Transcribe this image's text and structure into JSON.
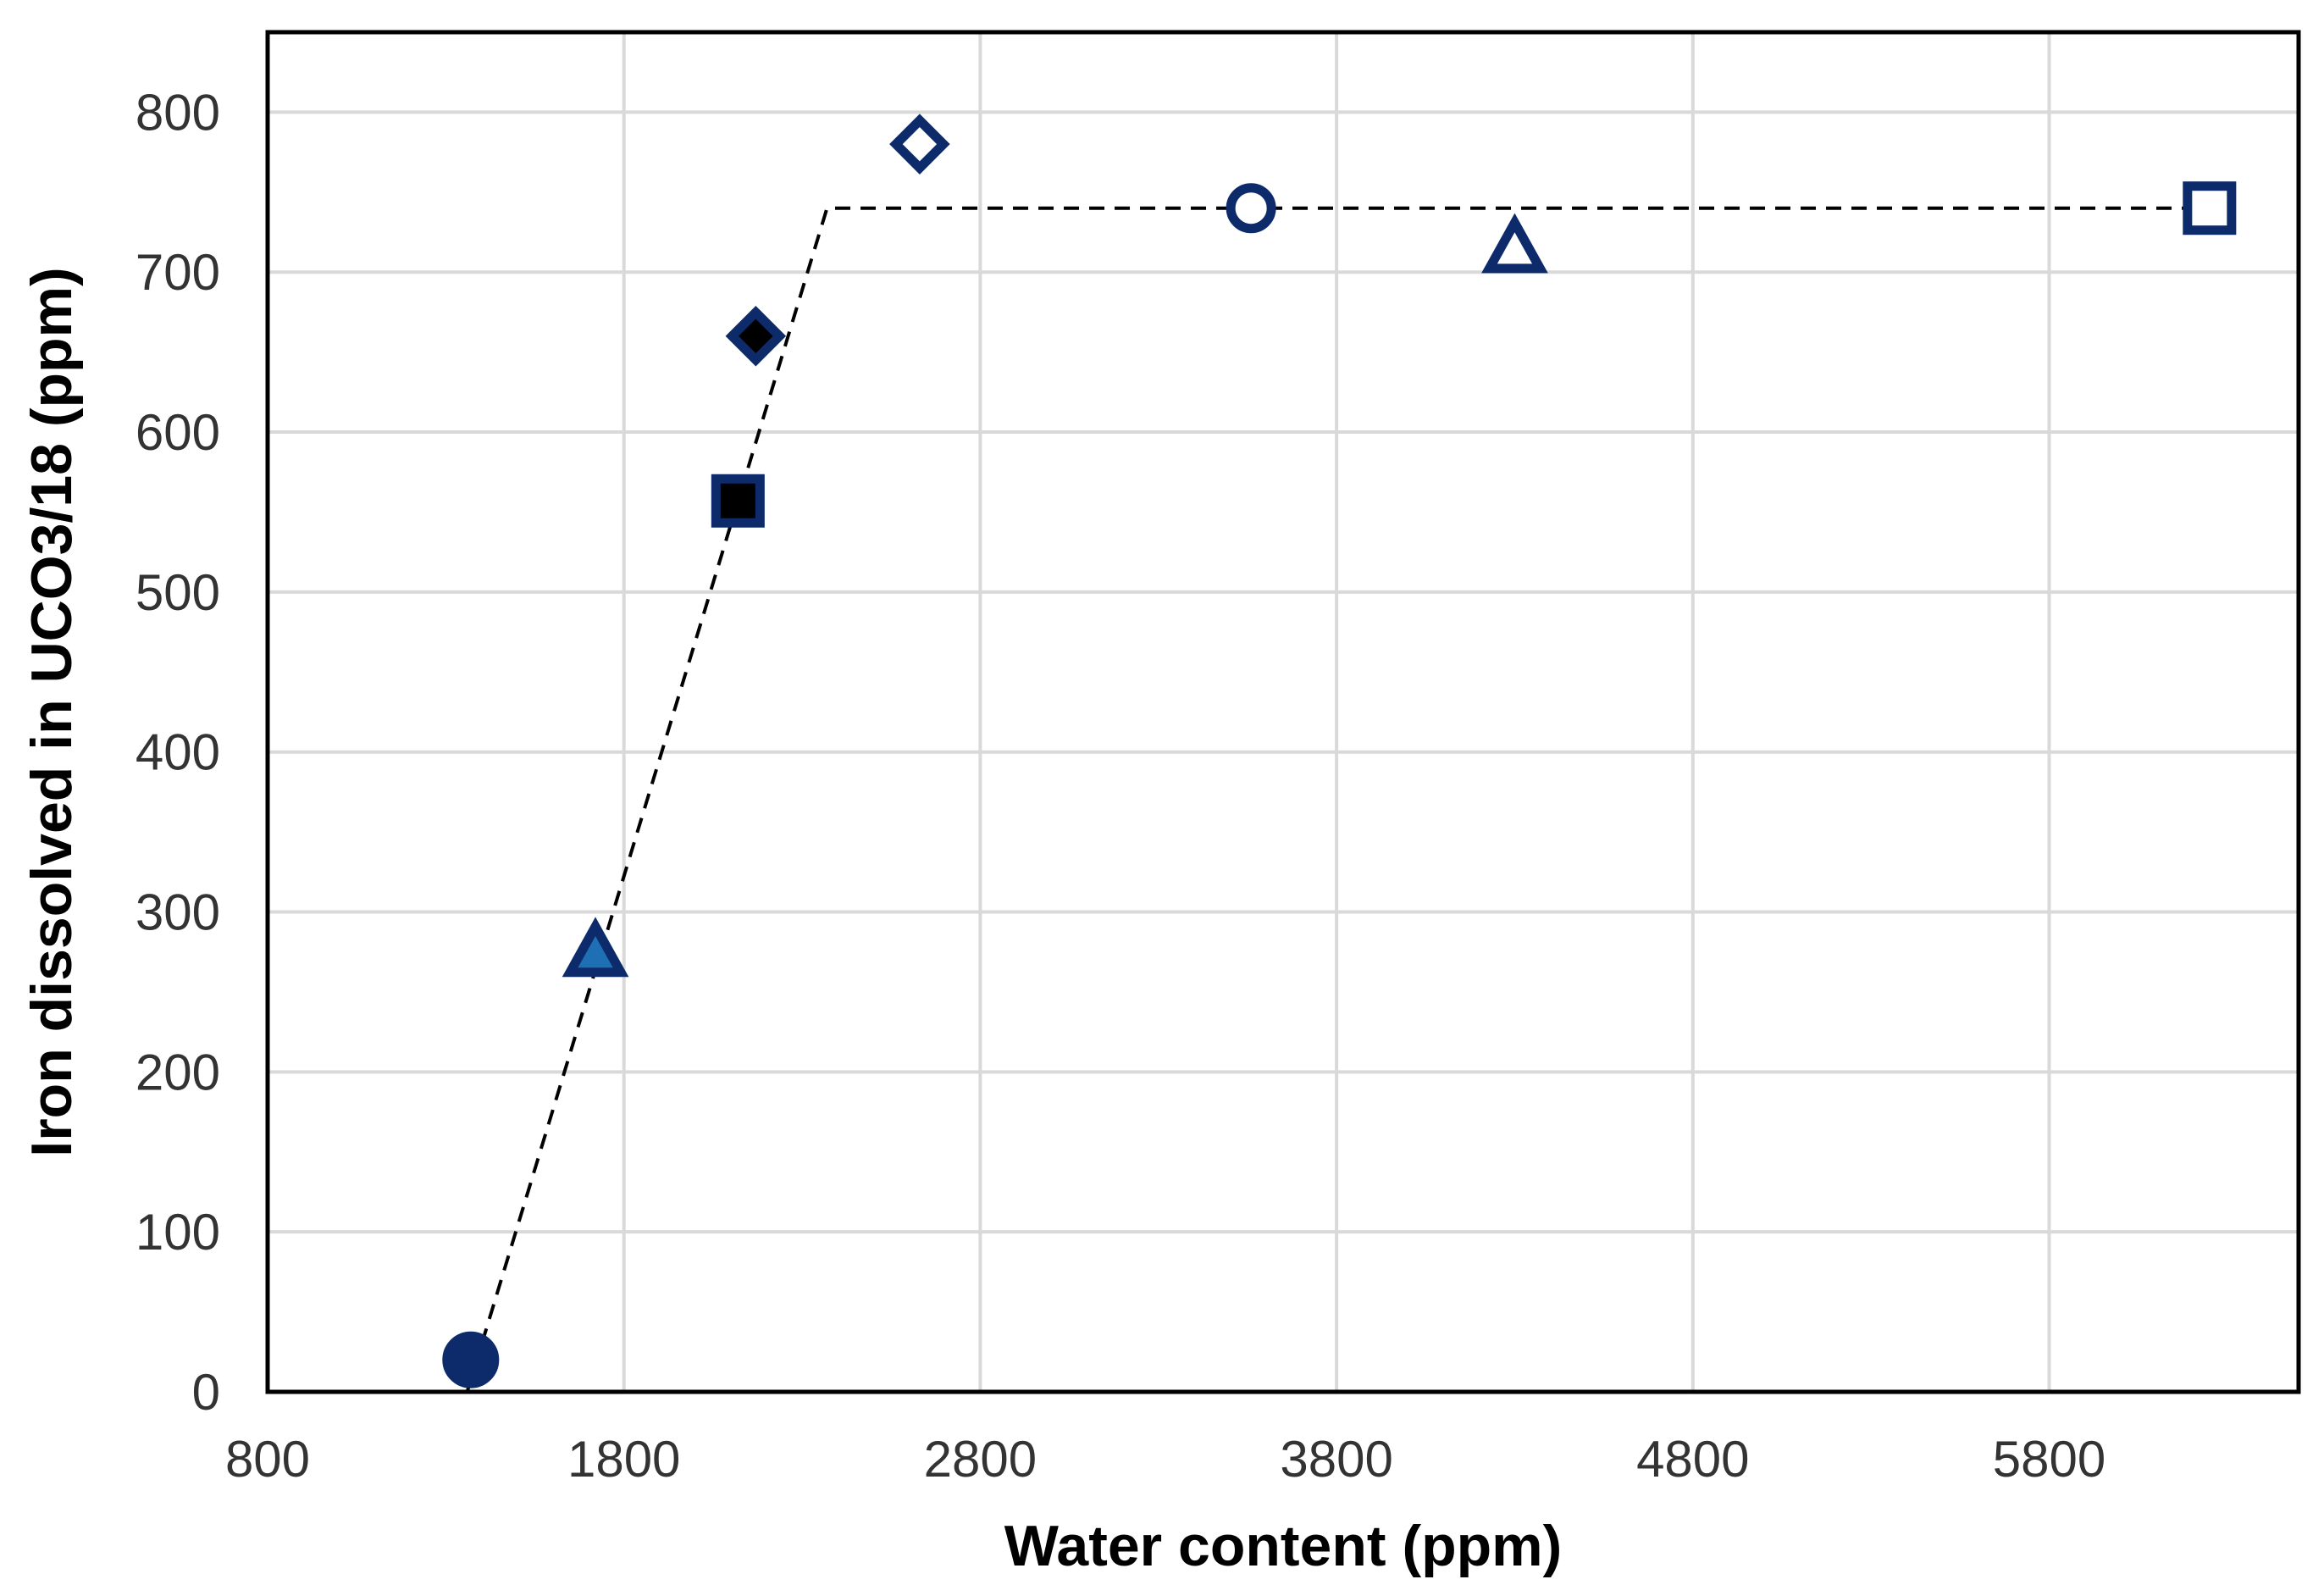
{
  "chart_data": {
    "type": "scatter",
    "title": "",
    "xlabel": "Water content (ppm)",
    "ylabel": "Iron dissolved in UCO3/18 (ppm)",
    "xlim": [
      800,
      6500
    ],
    "ylim": [
      0,
      850
    ],
    "x_ticks": [
      800,
      1800,
      2800,
      3800,
      4800,
      5800
    ],
    "y_ticks": [
      0,
      100,
      200,
      300,
      400,
      500,
      600,
      700,
      800
    ],
    "grid": true,
    "legend": "none",
    "points": [
      {
        "x": 1370,
        "y": 20,
        "marker": "circle",
        "fill": "#0d2b6b",
        "stroke": "#0d2b6b"
      },
      {
        "x": 1720,
        "y": 275,
        "marker": "triangle",
        "fill": "#1f6fb5",
        "stroke": "#0d2b6b"
      },
      {
        "x": 2120,
        "y": 557,
        "marker": "square",
        "fill": "#000000",
        "stroke": "#0d2b6b"
      },
      {
        "x": 2170,
        "y": 660,
        "marker": "diamond",
        "fill": "#000000",
        "stroke": "#0d2b6b"
      },
      {
        "x": 2630,
        "y": 780,
        "marker": "diamond",
        "fill": "#ffffff",
        "stroke": "#0d2b6b"
      },
      {
        "x": 3560,
        "y": 740,
        "marker": "circle",
        "fill": "#ffffff",
        "stroke": "#0d2b6b"
      },
      {
        "x": 4300,
        "y": 715,
        "marker": "triangle",
        "fill": "#ffffff",
        "stroke": "#0d2b6b"
      },
      {
        "x": 6250,
        "y": 740,
        "marker": "square",
        "fill": "#ffffff",
        "stroke": "#0d2b6b"
      }
    ],
    "trend_line": {
      "style": "dashed",
      "color": "#000000",
      "points": [
        [
          1360,
          0
        ],
        [
          2370,
          740
        ],
        [
          6250,
          740
        ]
      ]
    }
  }
}
